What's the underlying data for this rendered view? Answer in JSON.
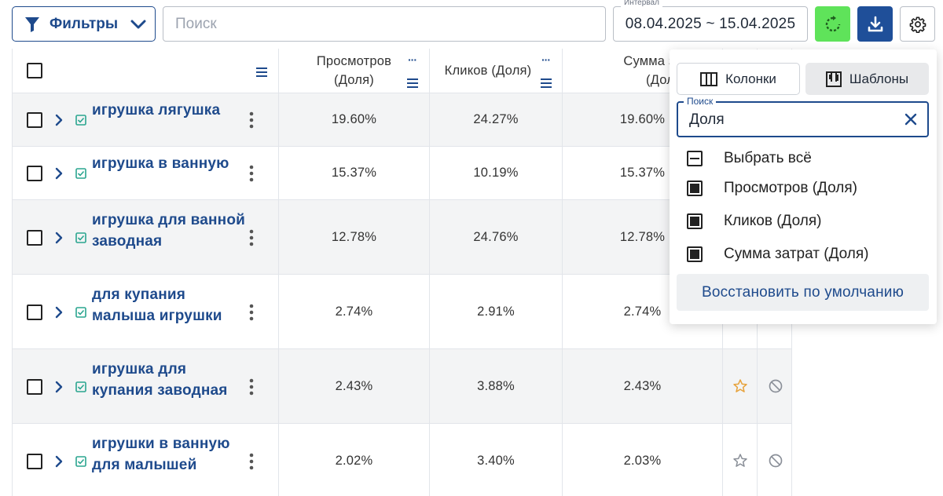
{
  "toolbar": {
    "filter_label": "Фильтры",
    "search_placeholder": "Поиск",
    "interval_label": "Интервал",
    "interval_value": "08.04.2025 ~ 15.04.2025",
    "accent_color": "#1e4a8c",
    "refresh_color": "#5fe35a",
    "download_color": "#1f4f99"
  },
  "table": {
    "headers": {
      "views": [
        "Просмотров",
        "(Доля)"
      ],
      "clicks": "Кликов (Доля)",
      "cost": [
        "Сумма затрат",
        "(Доля)"
      ]
    },
    "rows": [
      {
        "keyword": "игрушка лягушка",
        "views": "19.60%",
        "clicks": "24.27%",
        "cost": "19.60%",
        "starred": false,
        "star_visible": false
      },
      {
        "keyword": "игрушка в ванную",
        "views": "15.37%",
        "clicks": "10.19%",
        "cost": "15.37%",
        "starred": false,
        "star_visible": false
      },
      {
        "keyword": "игрушка для ванной заводная",
        "views": "12.78%",
        "clicks": "24.76%",
        "cost": "12.78%",
        "starred": false,
        "star_visible": false
      },
      {
        "keyword": "для купания малыша игрушки",
        "views": "2.74%",
        "clicks": "2.91%",
        "cost": "2.74%",
        "starred": false,
        "star_visible": false
      },
      {
        "keyword": "игрушка для купания заводная",
        "views": "2.43%",
        "clicks": "3.88%",
        "cost": "2.43%",
        "starred": true,
        "star_visible": true
      },
      {
        "keyword": "игрушки в ванную для малышей",
        "views": "2.02%",
        "clicks": "3.40%",
        "cost": "2.03%",
        "starred": false,
        "star_visible": true
      }
    ]
  },
  "column_panel": {
    "tab_columns": "Колонки",
    "tab_templates": "Шаблоны",
    "search_label": "Поиск",
    "search_value": "Доля",
    "select_all": "Выбрать всё",
    "options": [
      {
        "label": "Просмотров (Доля)",
        "checked": true
      },
      {
        "label": "Кликов (Доля)",
        "checked": true
      },
      {
        "label": "Сумма затрат (Доля)",
        "checked": true
      }
    ],
    "reset_label": "Восстановить по умолчанию"
  }
}
